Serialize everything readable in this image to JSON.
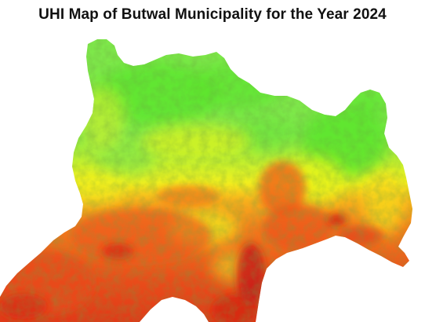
{
  "map": {
    "title": "UHI Map of Butwal Municipality for the Year 2024",
    "colors": {
      "cool": "#5ce62e",
      "mild": "#e8f51c",
      "warm": "#f59a1a",
      "hot": "#e83418",
      "very_hot": "#c81a14"
    }
  }
}
